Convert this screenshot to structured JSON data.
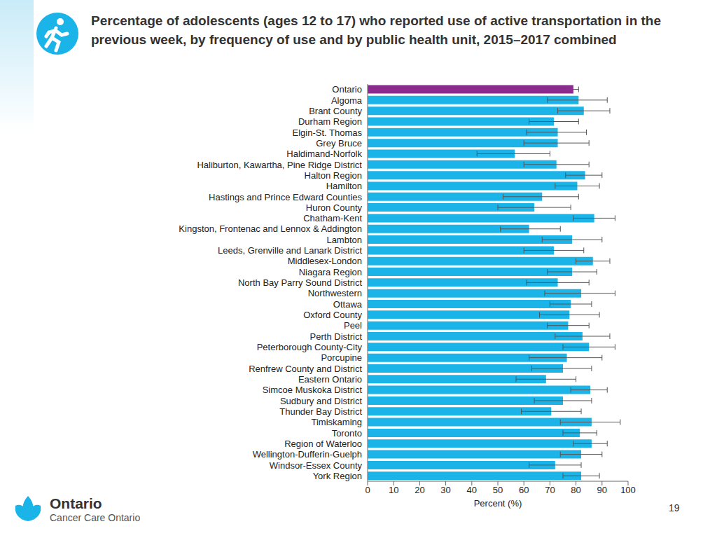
{
  "chart_data": {
    "type": "bar",
    "orientation": "horizontal",
    "title": "Percentage of adolescents (ages 12 to 17) who reported use of active transportation in the previous week, by frequency of use and by public health unit, 2015–2017 combined",
    "x_label": "Percent (%)",
    "categories": [
      "Ontario",
      "Algoma",
      "Brant County",
      "Durham Region",
      "Elgin-St. Thomas",
      "Grey Bruce",
      "Haldimand-Norfolk",
      "Haliburton, Kawartha, Pine Ridge District",
      "Halton Region",
      "Hamilton",
      "Hastings and Prince Edward Counties",
      "Huron County",
      "Chatham-Kent",
      "Kingston, Frontenac and Lennox & Addington",
      "Lambton",
      "Leeds, Grenville and Lanark District",
      "Middlesex-London",
      "Niagara Region",
      "North Bay Parry Sound District",
      "Northwestern",
      "Ottawa",
      "Oxford County",
      "Peel",
      "Perth District",
      "Peterborough County-City",
      "Porcupine",
      "Renfrew County and District",
      "Eastern Ontario",
      "Simcoe Muskoka District",
      "Sudbury and District",
      "Thunder Bay District",
      "Timiskaming",
      "Toronto",
      "Region of Waterloo",
      "Wellington-Dufferin-Guelph",
      "Windsor-Essex County",
      "York Region"
    ],
    "values": [
      79,
      81,
      83,
      71.5,
      73,
      73,
      56.5,
      72.5,
      83.5,
      80.5,
      67,
      64,
      87,
      62,
      78.5,
      71.5,
      86.5,
      78.5,
      73,
      82,
      78,
      77.5,
      77,
      82.5,
      85,
      76.5,
      75,
      68.5,
      85.5,
      75,
      70.5,
      86,
      81.5,
      86,
      82,
      72,
      82
    ],
    "error_low": [
      77,
      69,
      73,
      62,
      61,
      60,
      42,
      60,
      76,
      72,
      52,
      50,
      79,
      51,
      67,
      60,
      80,
      69,
      61,
      68,
      70,
      66,
      69,
      72,
      75,
      62,
      63,
      57,
      78,
      64,
      59,
      74,
      75,
      79,
      74,
      62,
      75
    ],
    "error_high": [
      81,
      92,
      93,
      81,
      84,
      85,
      70,
      85,
      90,
      89,
      81,
      78,
      95,
      74,
      90,
      83,
      93,
      88,
      85,
      95,
      86,
      89,
      85,
      93,
      95,
      90,
      86,
      80,
      92,
      86,
      82,
      97,
      88,
      92,
      90,
      82,
      89
    ],
    "colors": [
      "#8b2b8e",
      "#1ab4e8",
      "#1ab4e8",
      "#1ab4e8",
      "#1ab4e8",
      "#1ab4e8",
      "#1ab4e8",
      "#1ab4e8",
      "#1ab4e8",
      "#1ab4e8",
      "#1ab4e8",
      "#1ab4e8",
      "#1ab4e8",
      "#1ab4e8",
      "#1ab4e8",
      "#1ab4e8",
      "#1ab4e8",
      "#1ab4e8",
      "#1ab4e8",
      "#1ab4e8",
      "#1ab4e8",
      "#1ab4e8",
      "#1ab4e8",
      "#1ab4e8",
      "#1ab4e8",
      "#1ab4e8",
      "#1ab4e8",
      "#1ab4e8",
      "#1ab4e8",
      "#1ab4e8",
      "#1ab4e8",
      "#1ab4e8",
      "#1ab4e8",
      "#1ab4e8",
      "#1ab4e8",
      "#1ab4e8",
      "#1ab4e8"
    ],
    "xlim": [
      0,
      100
    ],
    "xticks": [
      0,
      10,
      20,
      30,
      40,
      50,
      60,
      70,
      80,
      90,
      100
    ],
    "grid": false
  },
  "footer": {
    "logo": "Ontario",
    "organization": "Cancer Care Ontario",
    "page": "19"
  }
}
